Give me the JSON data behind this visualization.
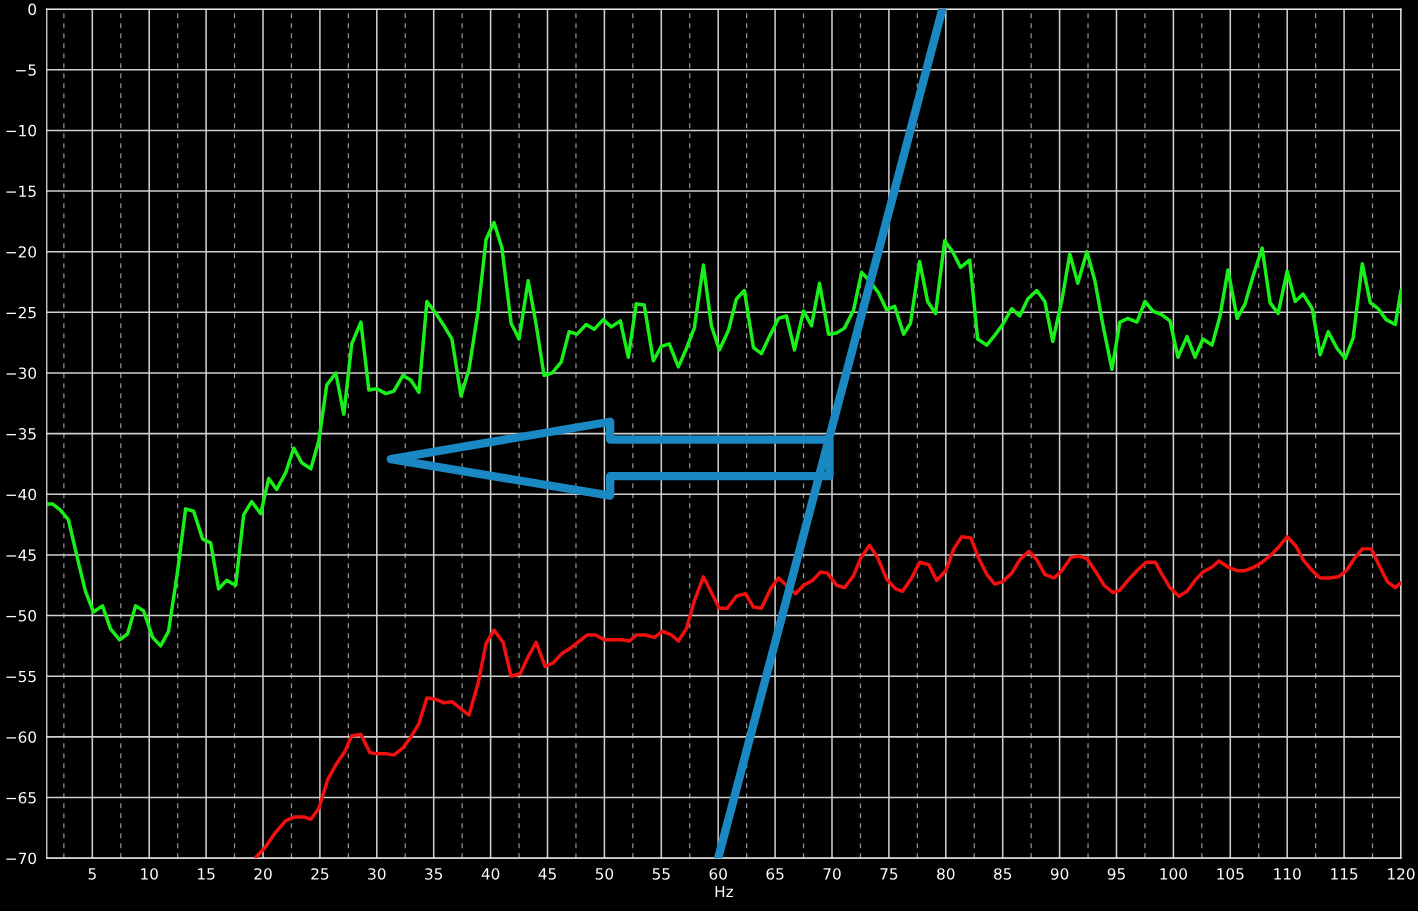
{
  "chart_data": {
    "type": "line",
    "xlabel": "Hz",
    "xlim": [
      1,
      120
    ],
    "ylim": [
      -70,
      0
    ],
    "xticks": [
      {
        "value": 2.5,
        "label": null
      },
      5,
      {
        "value": 7.5,
        "label": null
      },
      10,
      {
        "value": 12.5,
        "label": null
      },
      15,
      {
        "value": 17.5,
        "label": null
      },
      20,
      {
        "value": 22.5,
        "label": null
      },
      25,
      {
        "value": 27.5,
        "label": null
      },
      30,
      {
        "value": 32.5,
        "label": null
      },
      35,
      {
        "value": 37.5,
        "label": null
      },
      40,
      {
        "value": 42.5,
        "label": null
      },
      45,
      {
        "value": 47.5,
        "label": null
      },
      50,
      {
        "value": 52.5,
        "label": null
      },
      55,
      {
        "value": 57.5,
        "label": null
      },
      60,
      {
        "value": 62.5,
        "label": null
      },
      65,
      {
        "value": 67.5,
        "label": null
      },
      70,
      {
        "value": 72.5,
        "label": null
      },
      75,
      {
        "value": 77.5,
        "label": null
      },
      80,
      {
        "value": 82.5,
        "label": null
      },
      85,
      {
        "value": 87.5,
        "label": null
      },
      90,
      {
        "value": 92.5,
        "label": null
      },
      95,
      {
        "value": 97.5,
        "label": null
      },
      100,
      {
        "value": 102.5,
        "label": null
      },
      105,
      {
        "value": 107.5,
        "label": null
      },
      110,
      {
        "value": 112.5,
        "label": null
      },
      115,
      {
        "value": 117.5,
        "label": null
      },
      120
    ],
    "yticks": [
      {
        "value": -70,
        "label": "−70"
      },
      {
        "value": -65,
        "label": "−65"
      },
      {
        "value": -60,
        "label": "−60"
      },
      {
        "value": -55,
        "label": "−55"
      },
      {
        "value": -50,
        "label": "−50"
      },
      {
        "value": -45,
        "label": "−45"
      },
      {
        "value": -40,
        "label": "−40"
      },
      {
        "value": -35,
        "label": "−35"
      },
      {
        "value": -30,
        "label": "−30"
      },
      {
        "value": -25,
        "label": "−25"
      },
      {
        "value": -20,
        "label": "−20"
      },
      {
        "value": -15,
        "label": "−15"
      },
      {
        "value": -10,
        "label": "−10"
      },
      {
        "value": -5,
        "label": "−5"
      },
      0
    ],
    "grid": true,
    "series": [
      {
        "color": "#19f019",
        "x": [
          1.0,
          1.5,
          2.2,
          2.9,
          3.8,
          4.4,
          5.1,
          5.9,
          6.6,
          7.4,
          8.1,
          8.8,
          9.5,
          10.3,
          11.0,
          11.7,
          12.5,
          13.2,
          13.9,
          14.7,
          15.4,
          16.1,
          16.8,
          17.6,
          18.3,
          19.0,
          19.8,
          20.5,
          21.2,
          22.0,
          22.7,
          23.4,
          24.2,
          24.9,
          25.6,
          26.4,
          27.1,
          27.8,
          28.6,
          29.3,
          30.0,
          30.8,
          31.5,
          32.3,
          33.0,
          33.7,
          34.4,
          35.2,
          35.9,
          36.6,
          37.4,
          38.1,
          38.9,
          39.6,
          40.3,
          41.0,
          41.8,
          42.5,
          43.3,
          44.0,
          44.7,
          45.4,
          46.2,
          46.9,
          47.6,
          48.4,
          49.1,
          49.9,
          50.6,
          51.4,
          52.1,
          52.8,
          53.5,
          54.3,
          55.0,
          55.7,
          56.5,
          57.2,
          57.9,
          58.7,
          59.4,
          60.1,
          60.9,
          61.6,
          62.3,
          63.1,
          63.8,
          64.5,
          65.3,
          66.0,
          66.7,
          67.5,
          68.2,
          68.9,
          69.7,
          70.4,
          71.1,
          71.9,
          72.6,
          73.3,
          74.1,
          74.8,
          75.5,
          76.3,
          76.9,
          77.7,
          78.4,
          79.1,
          79.9,
          80.6,
          81.3,
          82.1,
          82.8,
          83.6,
          84.3,
          85.0,
          85.8,
          86.5,
          87.2,
          88.0,
          88.7,
          89.4,
          90.2,
          90.9,
          91.6,
          92.4,
          93.1,
          93.8,
          94.6,
          95.3,
          96.0,
          96.8,
          97.5,
          98.2,
          99.0,
          99.7,
          100.4,
          101.2,
          101.9,
          102.6,
          103.4,
          104.1,
          104.8,
          105.6,
          106.3,
          107.0,
          107.8,
          108.5,
          109.2,
          110.0,
          110.7,
          111.4,
          112.2,
          112.9,
          113.6,
          114.4,
          115.1,
          115.8,
          116.6,
          117.3,
          118.0,
          118.7,
          119.5,
          120.0
        ],
        "values": [
          -40.8,
          -40.8,
          -41.3,
          -42.1,
          -45.7,
          -48.0,
          -49.7,
          -49.2,
          -51.1,
          -52.0,
          -51.5,
          -49.2,
          -49.6,
          -51.8,
          -52.5,
          -51.3,
          -46.3,
          -41.2,
          -41.4,
          -43.7,
          -44.0,
          -47.8,
          -47.1,
          -47.5,
          -41.7,
          -40.6,
          -41.6,
          -38.7,
          -39.6,
          -38.2,
          -36.2,
          -37.4,
          -37.9,
          -35.6,
          -31.0,
          -30.0,
          -33.4,
          -27.6,
          -25.8,
          -31.4,
          -31.3,
          -31.7,
          -31.5,
          -30.2,
          -30.6,
          -31.6,
          -24.1,
          -25.1,
          -26.1,
          -27.2,
          -31.9,
          -29.7,
          -24.9,
          -19.0,
          -17.6,
          -19.7,
          -25.9,
          -27.2,
          -22.4,
          -26.0,
          -30.2,
          -30.0,
          -29.1,
          -26.6,
          -26.8,
          -26.0,
          -26.4,
          -25.6,
          -26.2,
          -25.7,
          -28.7,
          -24.3,
          -24.4,
          -29.0,
          -27.8,
          -27.6,
          -29.5,
          -28.0,
          -26.3,
          -21.1,
          -26.1,
          -28.1,
          -26.5,
          -23.9,
          -23.2,
          -27.9,
          -28.4,
          -27.0,
          -25.5,
          -25.3,
          -28.1,
          -24.9,
          -26.1,
          -22.6,
          -26.8,
          -26.7,
          -26.3,
          -24.8,
          -21.7,
          -22.4,
          -23.4,
          -24.8,
          -24.5,
          -26.8,
          -25.9,
          -20.8,
          -24.1,
          -25.1,
          -19.1,
          -20.0,
          -21.3,
          -20.7,
          -27.2,
          -27.7,
          -26.9,
          -26.0,
          -24.7,
          -25.3,
          -23.9,
          -23.2,
          -24.1,
          -27.4,
          -24.0,
          -20.2,
          -22.6,
          -20.0,
          -22.4,
          -26.0,
          -29.7,
          -25.8,
          -25.5,
          -25.8,
          -24.1,
          -24.9,
          -25.2,
          -25.7,
          -28.7,
          -27.0,
          -28.7,
          -27.2,
          -27.7,
          -25.3,
          -21.5,
          -25.5,
          -24.3,
          -22.0,
          -19.7,
          -24.2,
          -25.1,
          -21.6,
          -24.1,
          -23.5,
          -24.7,
          -28.5,
          -26.6,
          -28.0,
          -28.8,
          -27.1,
          -21.0,
          -24.2,
          -24.7,
          -25.6,
          -26.0,
          -23.2
        ]
      },
      {
        "color": "#f01010",
        "x": [
          19.4,
          20.2,
          21.0,
          22.0,
          22.8,
          23.6,
          24.2,
          24.9,
          25.7,
          26.4,
          27.2,
          27.8,
          28.6,
          29.4,
          30.1,
          30.9,
          31.5,
          32.3,
          33.0,
          33.7,
          34.4,
          35.2,
          35.9,
          36.6,
          37.4,
          38.1,
          38.9,
          39.6,
          40.3,
          41.1,
          41.8,
          42.6,
          43.3,
          44.0,
          44.8,
          45.5,
          46.3,
          47.0,
          47.8,
          48.5,
          49.2,
          50.0,
          50.7,
          51.5,
          52.2,
          52.8,
          53.6,
          54.4,
          55.1,
          55.9,
          56.5,
          57.2,
          57.9,
          58.7,
          59.4,
          60.1,
          60.8,
          61.6,
          62.4,
          63.1,
          63.8,
          64.6,
          65.3,
          66.1,
          66.8,
          67.5,
          68.3,
          69.0,
          69.6,
          70.4,
          71.1,
          71.9,
          72.5,
          73.3,
          74.0,
          74.8,
          75.6,
          76.2,
          77.0,
          77.7,
          78.5,
          79.2,
          80.0,
          80.7,
          81.4,
          82.2,
          82.9,
          83.6,
          84.3,
          85.0,
          85.8,
          86.5,
          87.3,
          88.0,
          88.7,
          89.5,
          90.2,
          91.0,
          91.7,
          92.4,
          93.2,
          93.9,
          94.7,
          95.3,
          96.1,
          96.8,
          97.6,
          98.4,
          99.0,
          99.7,
          100.5,
          101.2,
          101.9,
          102.6,
          103.4,
          104.0,
          104.8,
          105.6,
          106.3,
          107.1,
          107.8,
          108.6,
          109.3,
          110.0,
          110.8,
          111.4,
          112.2,
          112.9,
          113.7,
          114.5,
          115.2,
          115.9,
          116.6,
          117.4,
          118.0,
          118.8,
          119.5,
          120.0
        ],
        "values": [
          -69.9,
          -69.1,
          -68.0,
          -66.9,
          -66.6,
          -66.6,
          -66.8,
          -65.9,
          -63.5,
          -62.3,
          -61.2,
          -59.9,
          -59.8,
          -61.3,
          -61.4,
          -61.4,
          -61.5,
          -60.9,
          -60.0,
          -58.9,
          -56.8,
          -56.9,
          -57.2,
          -57.1,
          -57.7,
          -58.2,
          -55.6,
          -52.3,
          -51.2,
          -52.2,
          -55.0,
          -54.8,
          -53.4,
          -52.2,
          -54.2,
          -53.9,
          -53.1,
          -52.7,
          -52.1,
          -51.6,
          -51.6,
          -52.0,
          -52.0,
          -52.0,
          -52.1,
          -51.6,
          -51.6,
          -51.8,
          -51.3,
          -51.6,
          -52.1,
          -51.1,
          -48.8,
          -46.8,
          -48.1,
          -49.4,
          -49.4,
          -48.4,
          -48.2,
          -49.3,
          -49.4,
          -47.8,
          -46.9,
          -47.6,
          -48.2,
          -47.5,
          -47.1,
          -46.4,
          -46.5,
          -47.5,
          -47.7,
          -46.7,
          -45.3,
          -44.2,
          -45.2,
          -47.0,
          -47.8,
          -48.0,
          -46.9,
          -45.6,
          -45.8,
          -47.1,
          -46.3,
          -44.5,
          -43.5,
          -43.6,
          -45.3,
          -46.6,
          -47.4,
          -47.2,
          -46.5,
          -45.4,
          -44.7,
          -45.4,
          -46.6,
          -46.9,
          -46.3,
          -45.2,
          -45.1,
          -45.3,
          -46.4,
          -47.5,
          -48.1,
          -47.9,
          -47.0,
          -46.3,
          -45.6,
          -45.6,
          -46.6,
          -47.7,
          -48.4,
          -48.0,
          -47.1,
          -46.4,
          -46.0,
          -45.5,
          -46.0,
          -46.3,
          -46.3,
          -46.0,
          -45.6,
          -45.0,
          -44.3,
          -43.5,
          -44.3,
          -45.4,
          -46.3,
          -46.9,
          -46.9,
          -46.8,
          -46.3,
          -45.3,
          -44.5,
          -44.5,
          -45.7,
          -47.2,
          -47.7,
          -47.3
        ]
      },
      {
        "color": "#1a88c2",
        "x": [
          60,
          79.7
        ],
        "values": [
          -70,
          0
        ]
      }
    ]
  }
}
